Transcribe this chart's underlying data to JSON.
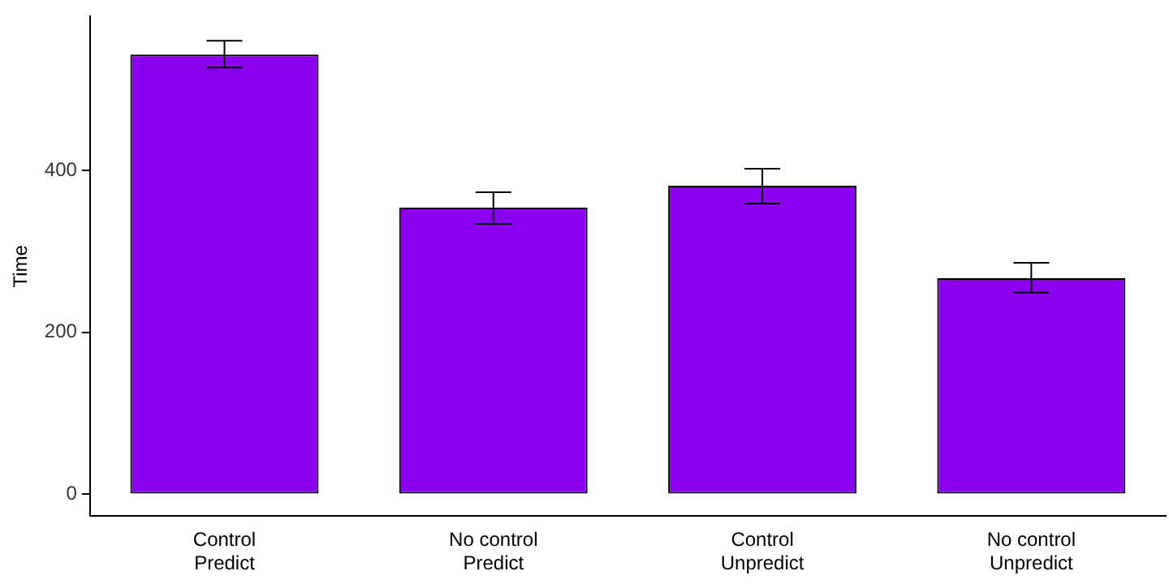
{
  "chart_data": {
    "type": "bar",
    "ylabel": "Time",
    "categories": [
      "Control\nPredict",
      "No control\nPredict",
      "Control\nUnpredict",
      "No control\nUnpredict"
    ],
    "values": [
      543,
      354,
      381,
      267
    ],
    "errors": [
      [
        527,
        560
      ],
      [
        334,
        373
      ],
      [
        359,
        402
      ],
      [
        249,
        286
      ]
    ],
    "color": "#8b00ee",
    "ylim": [
      -27,
      590
    ],
    "yticks": [
      0,
      200,
      400
    ],
    "grid": false,
    "legend": false
  }
}
